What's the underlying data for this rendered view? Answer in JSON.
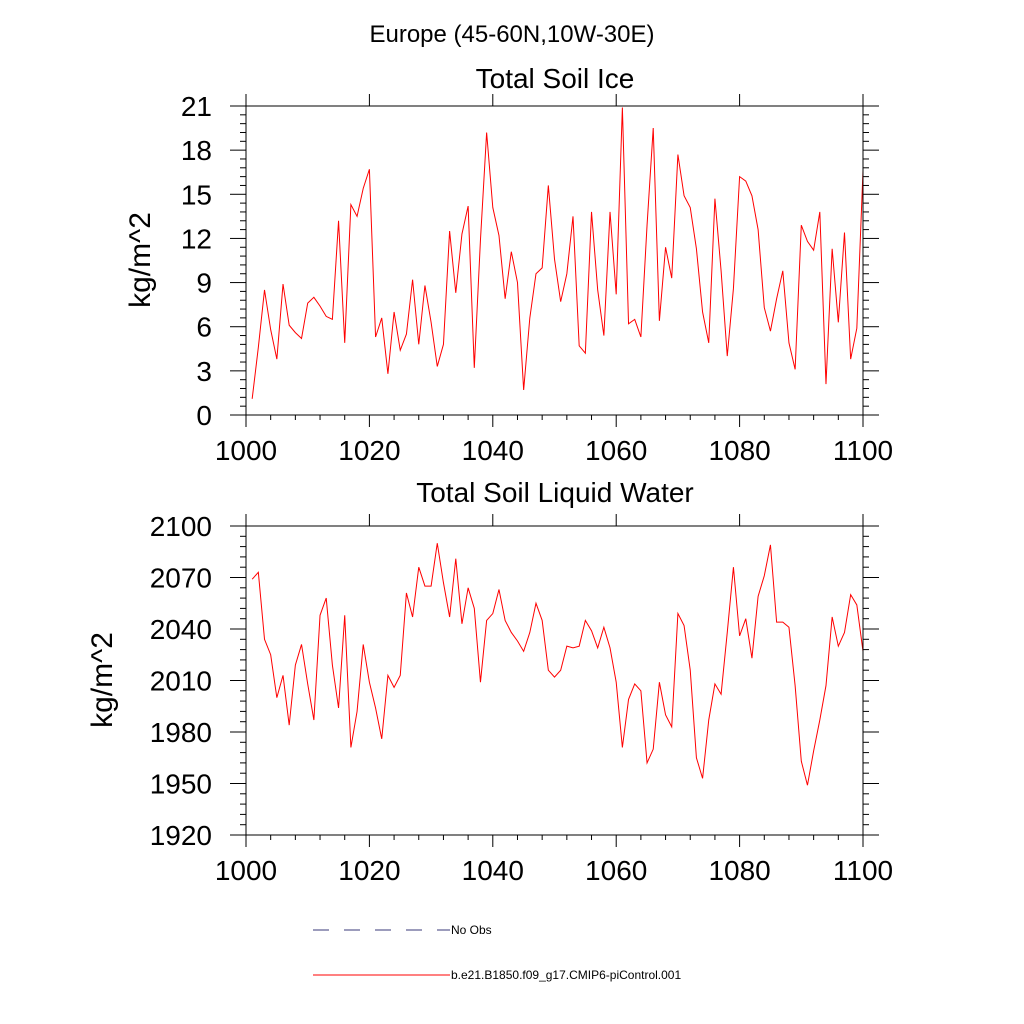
{
  "figure": {
    "suptitle": "Europe (45-60N,10W-30E)"
  },
  "chart_data": [
    {
      "type": "line",
      "title": "Total Soil Ice",
      "xlabel": "",
      "ylabel": "kg/m^2",
      "xlim": [
        1000,
        1100
      ],
      "ylim": [
        0,
        21
      ],
      "xticks": [
        1000,
        1020,
        1040,
        1060,
        1080,
        1100
      ],
      "yticks": [
        0,
        3,
        6,
        9,
        12,
        15,
        18,
        21
      ],
      "x_start": 1001,
      "series": [
        {
          "name": "b.e21.B1850.f09_g17.CMIP6-piControl.001",
          "color": "#ff0000",
          "values": [
            1.1,
            4.6,
            8.5,
            5.8,
            3.8,
            8.9,
            6.1,
            5.6,
            5.2,
            7.6,
            8.0,
            7.4,
            6.7,
            6.5,
            13.2,
            4.9,
            14.3,
            13.5,
            15.4,
            16.7,
            5.3,
            6.6,
            2.8,
            7.0,
            4.4,
            5.5,
            9.2,
            4.8,
            8.8,
            6.3,
            3.3,
            4.8,
            12.5,
            8.3,
            12.3,
            14.2,
            3.2,
            11.9,
            19.2,
            14.1,
            12.2,
            7.9,
            11.1,
            9.0,
            1.7,
            6.6,
            9.6,
            10.0,
            15.6,
            10.6,
            7.7,
            9.6,
            13.5,
            4.7,
            4.2,
            13.8,
            8.5,
            5.4,
            13.8,
            8.2,
            20.9,
            6.2,
            6.5,
            5.3,
            12.9,
            19.5,
            6.4,
            11.4,
            9.3,
            17.7,
            14.9,
            14.1,
            11.3,
            7.0,
            4.9,
            14.7,
            9.8,
            4.0,
            8.6,
            16.2,
            15.9,
            14.9,
            12.6,
            7.3,
            5.7,
            7.9,
            9.8,
            4.9,
            3.1,
            12.9,
            11.8,
            11.2,
            13.8,
            2.1,
            11.3,
            6.3,
            12.4,
            3.8,
            5.9,
            16.6
          ]
        }
      ]
    },
    {
      "type": "line",
      "title": "Total Soil Liquid Water",
      "xlabel": "",
      "ylabel": "kg/m^2",
      "xlim": [
        1000,
        1100
      ],
      "ylim": [
        1920,
        2100
      ],
      "xticks": [
        1000,
        1020,
        1040,
        1060,
        1080,
        1100
      ],
      "yticks": [
        1920,
        1950,
        1980,
        2010,
        2040,
        2070,
        2100
      ],
      "x_start": 1001,
      "series": [
        {
          "name": "b.e21.B1850.f09_g17.CMIP6-piControl.001",
          "color": "#ff0000",
          "values": [
            2069,
            2073,
            2034,
            2025,
            2000,
            2013,
            1984,
            2019,
            2031,
            2008,
            1987,
            2048,
            2058,
            2019,
            1994,
            2048,
            1971,
            1992,
            2031,
            2009,
            1994,
            1976,
            2013,
            2006,
            2013,
            2061,
            2047,
            2076,
            2065,
            2065,
            2090,
            2067,
            2047,
            2081,
            2043,
            2064,
            2052,
            2009,
            2045,
            2049,
            2063,
            2045,
            2038,
            2033,
            2027,
            2038,
            2055,
            2045,
            2016,
            2012,
            2016,
            2030,
            2029,
            2030,
            2045,
            2039,
            2029,
            2041,
            2029,
            2009,
            1971,
            1999,
            2008,
            2004,
            1962,
            1970,
            2009,
            1990,
            1983,
            2049,
            2042,
            2016,
            1965,
            1953,
            1987,
            2008,
            2002,
            2038,
            2076,
            2036,
            2046,
            2023,
            2059,
            2071,
            2089,
            2044,
            2044,
            2041,
            2007,
            1963,
            1949,
            1969,
            1987,
            2007,
            2047,
            2030,
            2038,
            2060,
            2054,
            2027
          ]
        }
      ]
    }
  ],
  "legend": {
    "items": [
      {
        "label": "No Obs",
        "color": "#3a3a78",
        "dash": "dashed"
      },
      {
        "label": "b.e21.B1850.f09_g17.CMIP6-piControl.001",
        "color": "#ff0000",
        "dash": "solid"
      }
    ]
  }
}
